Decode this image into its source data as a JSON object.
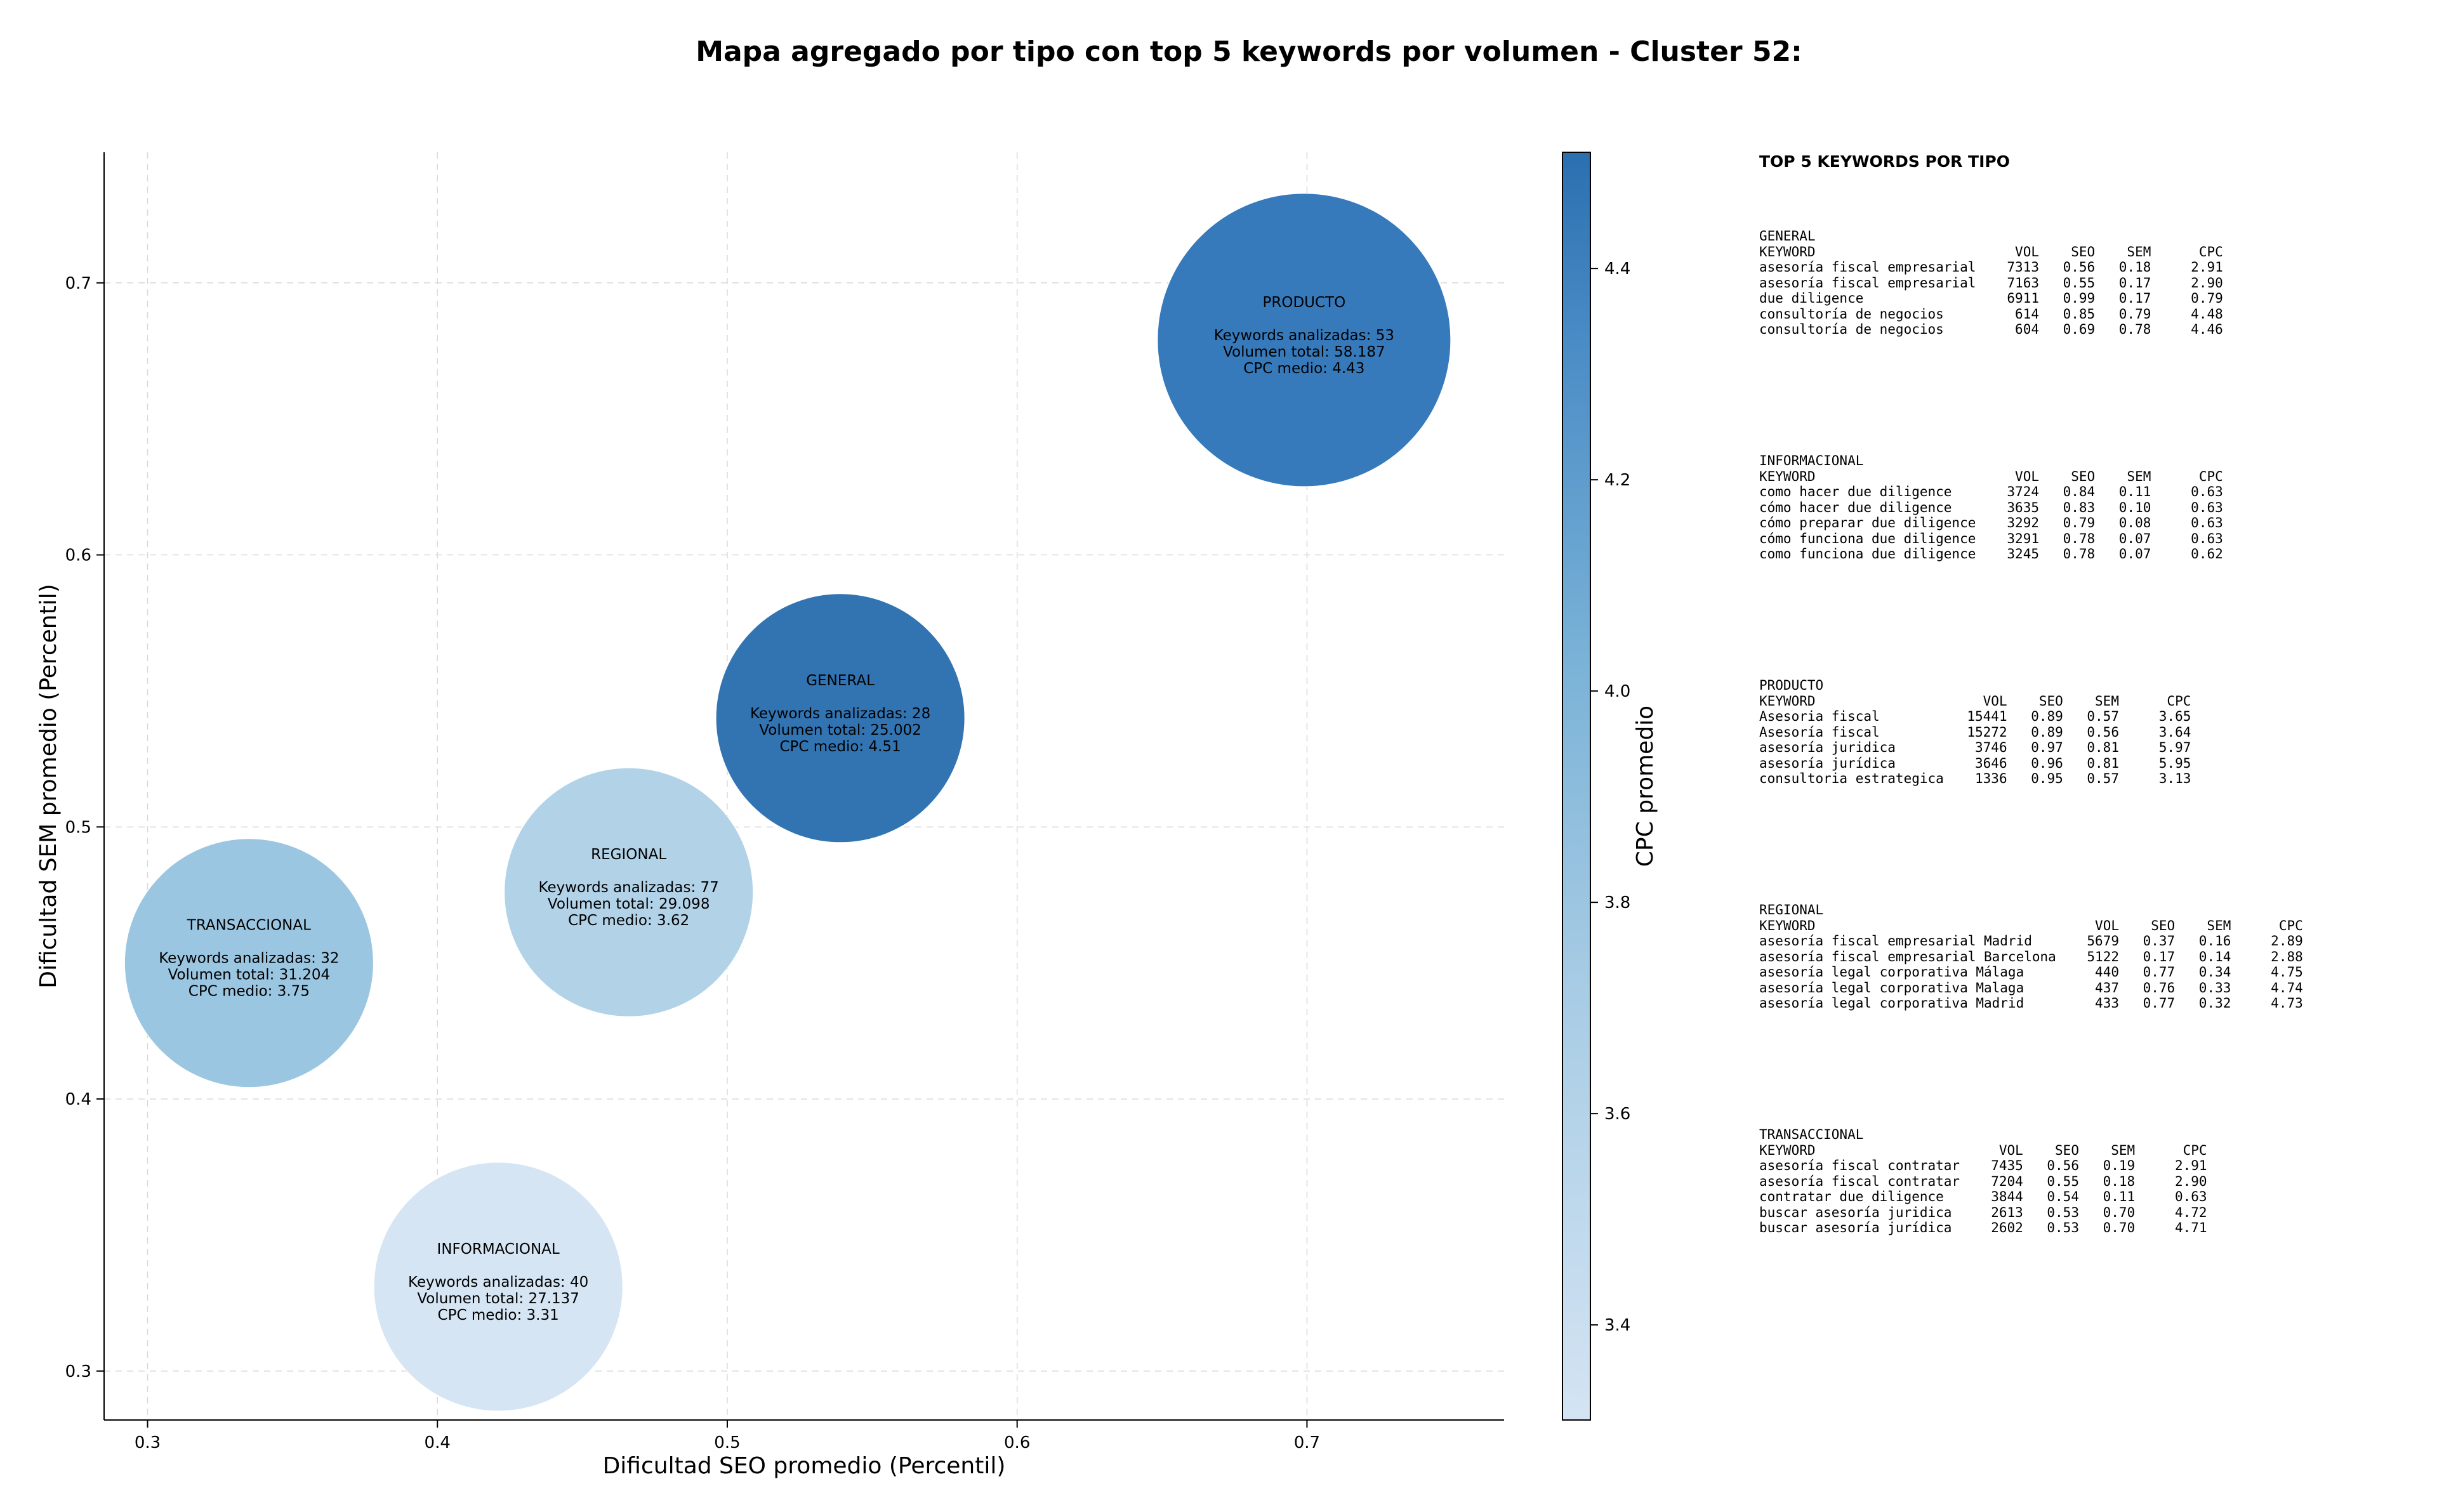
{
  "chart_data": {
    "type": "scatter",
    "title": "Mapa agregado por tipo con top 5 keywords por volumen - Cluster 52:",
    "xlabel": "Dificultad SEO promedio (Percentil)",
    "ylabel": "Dificultad SEM promedio (Percentil)",
    "colorbar_label": "CPC promedio",
    "xlim": [
      0.285,
      0.768
    ],
    "ylim": [
      0.282,
      0.748
    ],
    "xticks": [
      "0.3",
      "0.4",
      "0.5",
      "0.6",
      "0.7"
    ],
    "yticks": [
      "0.3",
      "0.4",
      "0.5",
      "0.6",
      "0.7"
    ],
    "colorbar_ticks": [
      "3.4",
      "3.6",
      "3.8",
      "4.0",
      "4.2",
      "4.4"
    ],
    "colorbar_range": [
      3.31,
      4.51
    ],
    "grid": true,
    "points": [
      {
        "type": "PRODUCTO",
        "x": 0.699,
        "y": 0.679,
        "keywords_label": "Keywords analizadas: 53",
        "volume_label": "Volumen total: 58.187",
        "cpc_label": "CPC medio: 4.43",
        "volume": 58187,
        "cpc": 4.43,
        "color": "#2f76b9"
      },
      {
        "type": "GENERAL",
        "x": 0.539,
        "y": 0.54,
        "keywords_label": "Keywords analizadas: 28",
        "volume_label": "Volumen total: 25.002",
        "cpc_label": "CPC medio: 4.51",
        "volume": 25002,
        "cpc": 4.51,
        "color": "#2b6fb0"
      },
      {
        "type": "REGIONAL",
        "x": 0.466,
        "y": 0.476,
        "keywords_label": "Keywords analizadas: 77",
        "volume_label": "Volumen total: 29.098",
        "cpc_label": "CPC medio: 3.62",
        "volume": 29098,
        "cpc": 3.62,
        "color": "#afd1e7"
      },
      {
        "type": "TRANSACCIONAL",
        "x": 0.335,
        "y": 0.45,
        "keywords_label": "Keywords analizadas: 32",
        "volume_label": "Volumen total: 31.204",
        "cpc_label": "CPC medio: 3.75",
        "volume": 31204,
        "cpc": 3.75,
        "color": "#98c4e0"
      },
      {
        "type": "INFORMACIONAL",
        "x": 0.421,
        "y": 0.331,
        "keywords_label": "Keywords analizadas: 40",
        "volume_label": "Volumen total: 27.137",
        "cpc_label": "CPC medio: 3.31",
        "volume": 27137,
        "cpc": 3.31,
        "color": "#d4e4f3"
      }
    ]
  },
  "tables_heading": "TOP 5 KEYWORDS POR TIPO",
  "tables": [
    {
      "type": "GENERAL",
      "headers": [
        "KEYWORD",
        "VOL",
        "SEO",
        "SEM",
        "CPC"
      ],
      "rows": [
        [
          "asesoría fiscal empresarial",
          "7313",
          "0.56",
          "0.18",
          "2.91"
        ],
        [
          "asesoría fiscal empresarial",
          "7163",
          "0.55",
          "0.17",
          "2.90"
        ],
        [
          "due diligence",
          "6911",
          "0.99",
          "0.17",
          "0.79"
        ],
        [
          "consultoría de negocios",
          "614",
          "0.85",
          "0.79",
          "4.48"
        ],
        [
          "consultoría de negocios",
          "604",
          "0.69",
          "0.78",
          "4.46"
        ]
      ]
    },
    {
      "type": "INFORMACIONAL",
      "headers": [
        "KEYWORD",
        "VOL",
        "SEO",
        "SEM",
        "CPC"
      ],
      "rows": [
        [
          "como hacer due diligence",
          "3724",
          "0.84",
          "0.11",
          "0.63"
        ],
        [
          "cómo hacer due diligence",
          "3635",
          "0.83",
          "0.10",
          "0.63"
        ],
        [
          "cómo preparar due diligence",
          "3292",
          "0.79",
          "0.08",
          "0.63"
        ],
        [
          "cómo funciona due diligence",
          "3291",
          "0.78",
          "0.07",
          "0.63"
        ],
        [
          "como funciona due diligence",
          "3245",
          "0.78",
          "0.07",
          "0.62"
        ]
      ]
    },
    {
      "type": "PRODUCTO",
      "headers": [
        "KEYWORD",
        "VOL",
        "SEO",
        "SEM",
        "CPC"
      ],
      "rows": [
        [
          "Asesoria fiscal",
          "15441",
          "0.89",
          "0.57",
          "3.65"
        ],
        [
          "Asesoría fiscal",
          "15272",
          "0.89",
          "0.56",
          "3.64"
        ],
        [
          "asesoría juridica",
          "3746",
          "0.97",
          "0.81",
          "5.97"
        ],
        [
          "asesoría jurídica",
          "3646",
          "0.96",
          "0.81",
          "5.95"
        ],
        [
          "consultoria estrategica",
          "1336",
          "0.95",
          "0.57",
          "3.13"
        ]
      ]
    },
    {
      "type": "REGIONAL",
      "headers": [
        "KEYWORD",
        "VOL",
        "SEO",
        "SEM",
        "CPC"
      ],
      "rows": [
        [
          "asesoría fiscal empresarial Madrid",
          "5679",
          "0.37",
          "0.16",
          "2.89"
        ],
        [
          "asesoría fiscal empresarial Barcelona",
          "5122",
          "0.17",
          "0.14",
          "2.88"
        ],
        [
          "asesoría legal corporativa Málaga",
          "440",
          "0.77",
          "0.34",
          "4.75"
        ],
        [
          "asesoría legal corporativa Malaga",
          "437",
          "0.76",
          "0.33",
          "4.74"
        ],
        [
          "asesoría legal corporativa Madrid",
          "433",
          "0.77",
          "0.32",
          "4.73"
        ]
      ]
    },
    {
      "type": "TRANSACCIONAL",
      "headers": [
        "KEYWORD",
        "VOL",
        "SEO",
        "SEM",
        "CPC"
      ],
      "rows": [
        [
          "asesoría fiscal contratar",
          "7435",
          "0.56",
          "0.19",
          "2.91"
        ],
        [
          "asesoría fiscal contratar",
          "7204",
          "0.55",
          "0.18",
          "2.90"
        ],
        [
          "contratar due diligence",
          "3844",
          "0.54",
          "0.11",
          "0.63"
        ],
        [
          "buscar asesoría juridica",
          "2613",
          "0.53",
          "0.70",
          "4.72"
        ],
        [
          "buscar asesoría jurídica",
          "2602",
          "0.53",
          "0.70",
          "4.71"
        ]
      ]
    }
  ]
}
